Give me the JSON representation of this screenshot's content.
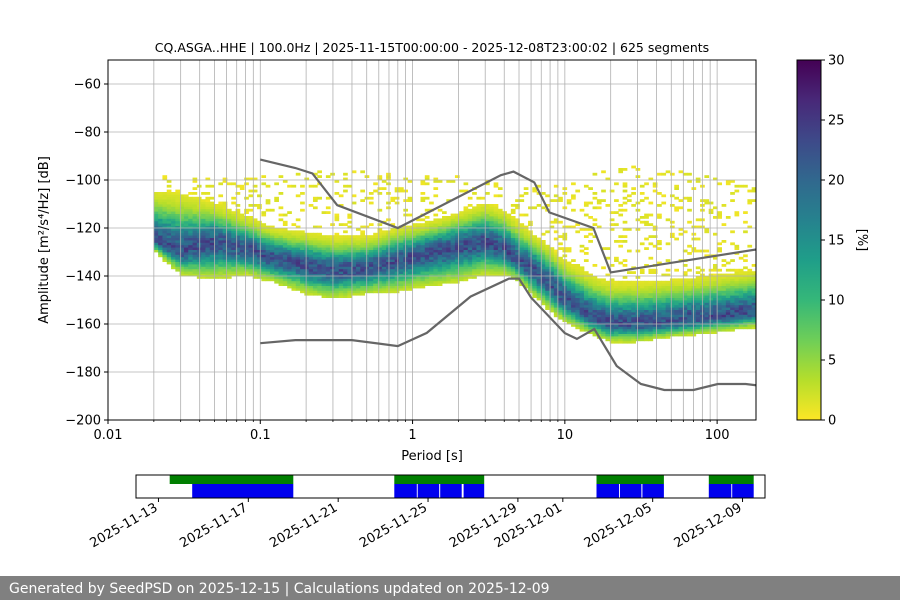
{
  "footer": {
    "text": "Generated by SeedPSD on 2025-12-15 | Calculations updated on 2025-12-09"
  },
  "colors": {
    "colormap": [
      "#fde725",
      "#b5de2b",
      "#6ece58",
      "#35b779",
      "#1f9e89",
      "#26828e",
      "#31688e",
      "#3e4989",
      "#482878",
      "#440154"
    ],
    "noise_model": "#666666",
    "availability_green": "#007f00",
    "availability_blue": "#0000ee",
    "grid": "#b0b0b0"
  },
  "chart_data": [
    {
      "type": "heatmap",
      "title": "CQ.ASGA..HHE | 100.0Hz | 2025-11-15T00:00:00 - 2025-12-08T23:00:02 | 625 segments",
      "xlabel": "Period [s]",
      "ylabel": "Amplitude [m²/s⁴/Hz] [dB]",
      "x_scale": "log",
      "xlim": [
        0.01,
        180
      ],
      "ylim": [
        -200,
        -50
      ],
      "x_ticks": [
        {
          "value": 0.01,
          "label": "0.01"
        },
        {
          "value": 0.1,
          "label": "0.1"
        },
        {
          "value": 1,
          "label": "1"
        },
        {
          "value": 10,
          "label": "10"
        },
        {
          "value": 100,
          "label": "100"
        }
      ],
      "y_ticks": [
        {
          "value": -60,
          "label": "−60"
        },
        {
          "value": -80,
          "label": "−80"
        },
        {
          "value": -100,
          "label": "−100"
        },
        {
          "value": -120,
          "label": "−120"
        },
        {
          "value": -140,
          "label": "−140"
        },
        {
          "value": -160,
          "label": "−160"
        },
        {
          "value": -180,
          "label": "−180"
        },
        {
          "value": -200,
          "label": "−200"
        }
      ],
      "grid": "on",
      "colorbar": {
        "label": "[%]",
        "range": [
          0,
          30
        ],
        "ticks": [
          {
            "value": 0,
            "label": "0"
          },
          {
            "value": 5,
            "label": "5"
          },
          {
            "value": 10,
            "label": "10"
          },
          {
            "value": 15,
            "label": "15"
          },
          {
            "value": 20,
            "label": "20"
          },
          {
            "value": 25,
            "label": "25"
          },
          {
            "value": 30,
            "label": "30"
          }
        ]
      },
      "density_ridge": {
        "period": [
          0.02,
          0.03,
          0.05,
          0.08,
          0.12,
          0.2,
          0.3,
          0.5,
          0.8,
          1.2,
          2,
          3,
          4,
          5,
          6,
          8,
          10,
          15,
          20,
          30,
          50,
          100,
          180
        ],
        "mode_db": [
          -125,
          -130,
          -126,
          -129,
          -133,
          -136,
          -138,
          -137,
          -134,
          -131,
          -128,
          -126,
          -129,
          -134,
          -137,
          -144,
          -150,
          -157,
          -160,
          -160,
          -159,
          -157,
          -155
        ],
        "upper_db": [
          -105,
          -106,
          -110,
          -115,
          -120,
          -122,
          -124,
          -124,
          -120,
          -118,
          -114,
          -110,
          -113,
          -118,
          -122,
          -128,
          -134,
          -140,
          -143,
          -143,
          -142,
          -140,
          -138
        ],
        "lower_db": [
          -130,
          -140,
          -142,
          -140,
          -143,
          -148,
          -150,
          -148,
          -147,
          -145,
          -143,
          -140,
          -140,
          -143,
          -148,
          -155,
          -160,
          -165,
          -168,
          -168,
          -166,
          -164,
          -162
        ],
        "scatter_upper_db": [
          -97,
          -99,
          -100,
          -99,
          -98,
          -97,
          -97,
          -97,
          -98,
          -99,
          -99,
          -100,
          -102,
          -104,
          -103,
          -102,
          -100,
          -98,
          -95,
          -95,
          -96,
          -99,
          -104
        ]
      },
      "noise_models": [
        {
          "period": [
            0.1,
            0.17,
            0.22,
            0.32,
            0.8,
            3.8,
            4.6,
            6.3,
            7.9,
            15.4,
            20,
            354.8
          ],
          "db": [
            -91.5,
            -95,
            -97.3,
            -110.5,
            -120,
            -98,
            -96.5,
            -101,
            -113.5,
            -120,
            -138.5,
            -126
          ]
        },
        {
          "period": [
            0.1,
            0.17,
            0.4,
            0.8,
            1.24,
            2.4,
            4.3,
            5,
            6,
            10,
            12,
            15.6,
            21.9,
            31.6,
            45,
            70,
            101,
            154,
            328
          ],
          "db": [
            -168,
            -166.7,
            -166.7,
            -169.2,
            -163.7,
            -148.6,
            -141.1,
            -141.1,
            -149,
            -163.8,
            -166.2,
            -162.1,
            -177.5,
            -185,
            -187.5,
            -187.5,
            -185,
            -185,
            -187.5
          ]
        }
      ]
    },
    {
      "type": "bar",
      "x_axis": "date",
      "xlim": [
        "2025-11-12",
        "2025-12-10"
      ],
      "x_ticks": [
        "2025-11-13",
        "2025-11-17",
        "2025-11-21",
        "2025-11-25",
        "2025-11-29",
        "2025-12-01",
        "2025-12-05",
        "2025-12-09"
      ],
      "series": [
        {
          "color": "#007f00",
          "spans": [
            [
              "2025-11-13T12:00",
              "2025-11-19T00:00"
            ],
            [
              "2025-11-23T12:00",
              "2025-11-27T12:00"
            ],
            [
              "2025-12-02T12:00",
              "2025-12-05T12:00"
            ],
            [
              "2025-12-07T12:00",
              "2025-12-09T12:00"
            ]
          ]
        },
        {
          "color": "#0000ee",
          "spans": [
            [
              "2025-11-14T12:00",
              "2025-11-19T00:00"
            ],
            [
              "2025-11-23T12:00",
              "2025-11-24T12:00"
            ],
            [
              "2025-11-24T13:00",
              "2025-11-25T12:00"
            ],
            [
              "2025-11-25T13:00",
              "2025-11-26T12:00"
            ],
            [
              "2025-11-26T14:00",
              "2025-11-27T12:00"
            ],
            [
              "2025-12-02T12:00",
              "2025-12-03T12:00"
            ],
            [
              "2025-12-03T13:00",
              "2025-12-04T12:00"
            ],
            [
              "2025-12-04T13:00",
              "2025-12-05T12:00"
            ],
            [
              "2025-12-07T12:00",
              "2025-12-08T12:00"
            ],
            [
              "2025-12-08T13:00",
              "2025-12-09T12:00"
            ]
          ]
        }
      ]
    }
  ]
}
